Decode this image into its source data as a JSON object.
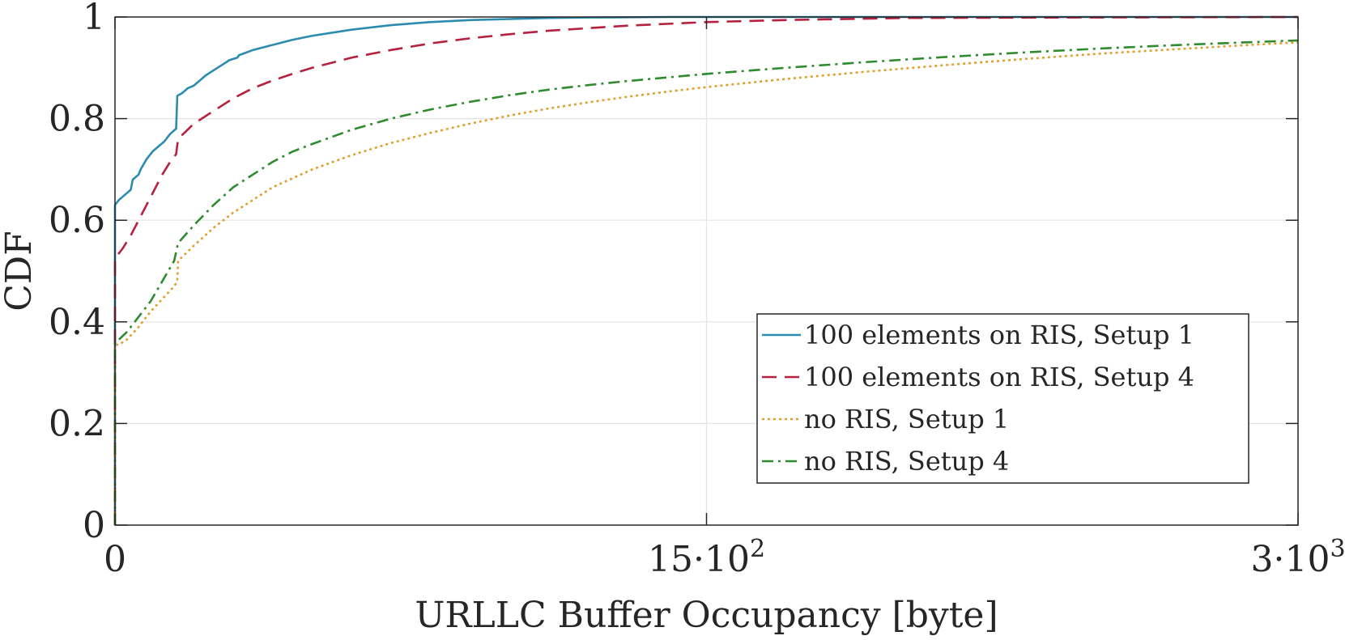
{
  "chart_data": {
    "type": "line",
    "xlabel": "URLLC Buffer Occupancy [byte]",
    "ylabel": "CDF",
    "xlim": [
      0,
      3000
    ],
    "ylim": [
      0,
      1
    ],
    "grid": true,
    "legend_position": "bottom-right",
    "x_ticks": [
      {
        "value": 0,
        "label": "0"
      },
      {
        "value": 1500,
        "label": "15·10",
        "exp": "2"
      },
      {
        "value": 3000,
        "label": "3·10",
        "exp": "3"
      }
    ],
    "y_ticks": [
      {
        "value": 0,
        "label": "0"
      },
      {
        "value": 0.2,
        "label": "0.2"
      },
      {
        "value": 0.4,
        "label": "0.4"
      },
      {
        "value": 0.6,
        "label": "0.6"
      },
      {
        "value": 0.8,
        "label": "0.8"
      },
      {
        "value": 1,
        "label": "1"
      }
    ],
    "series": [
      {
        "name": "100 elements on RIS, Setup 1",
        "color": "#2b8cb0",
        "dash": "solid",
        "points": [
          [
            0,
            0
          ],
          [
            0,
            0.35
          ],
          [
            0,
            0.5
          ],
          [
            0,
            0.63
          ],
          [
            10,
            0.64
          ],
          [
            25,
            0.65
          ],
          [
            40,
            0.66
          ],
          [
            45,
            0.68
          ],
          [
            60,
            0.69
          ],
          [
            65,
            0.7
          ],
          [
            80,
            0.72
          ],
          [
            95,
            0.735
          ],
          [
            110,
            0.745
          ],
          [
            125,
            0.755
          ],
          [
            140,
            0.77
          ],
          [
            155,
            0.78
          ],
          [
            158,
            0.845
          ],
          [
            170,
            0.85
          ],
          [
            185,
            0.86
          ],
          [
            200,
            0.865
          ],
          [
            215,
            0.875
          ],
          [
            230,
            0.885
          ],
          [
            250,
            0.895
          ],
          [
            270,
            0.905
          ],
          [
            290,
            0.915
          ],
          [
            310,
            0.92
          ],
          [
            315,
            0.925
          ],
          [
            350,
            0.935
          ],
          [
            400,
            0.945
          ],
          [
            450,
            0.955
          ],
          [
            500,
            0.963
          ],
          [
            600,
            0.975
          ],
          [
            700,
            0.984
          ],
          [
            800,
            0.99
          ],
          [
            900,
            0.994
          ],
          [
            1000,
            0.996
          ],
          [
            1100,
            0.998
          ],
          [
            1200,
            0.999
          ],
          [
            1400,
            1
          ],
          [
            3000,
            1
          ]
        ]
      },
      {
        "name": "100 elements on RIS, Setup 4",
        "color": "#b5213e",
        "dash": "dashed",
        "points": [
          [
            0,
            0
          ],
          [
            0,
            0.52
          ],
          [
            5,
            0.53
          ],
          [
            20,
            0.545
          ],
          [
            40,
            0.57
          ],
          [
            60,
            0.6
          ],
          [
            80,
            0.63
          ],
          [
            100,
            0.66
          ],
          [
            120,
            0.69
          ],
          [
            140,
            0.715
          ],
          [
            155,
            0.73
          ],
          [
            160,
            0.76
          ],
          [
            180,
            0.775
          ],
          [
            200,
            0.79
          ],
          [
            230,
            0.805
          ],
          [
            260,
            0.82
          ],
          [
            300,
            0.84
          ],
          [
            350,
            0.86
          ],
          [
            400,
            0.875
          ],
          [
            450,
            0.888
          ],
          [
            500,
            0.9
          ],
          [
            600,
            0.92
          ],
          [
            700,
            0.935
          ],
          [
            800,
            0.948
          ],
          [
            900,
            0.958
          ],
          [
            1000,
            0.966
          ],
          [
            1100,
            0.973
          ],
          [
            1200,
            0.978
          ],
          [
            1300,
            0.983
          ],
          [
            1500,
            0.99
          ],
          [
            1700,
            0.994
          ],
          [
            2000,
            0.998
          ],
          [
            2400,
            0.999
          ],
          [
            3000,
            1
          ]
        ]
      },
      {
        "name": "no RIS, Setup 1",
        "color": "#e0a030",
        "dash": "dotted",
        "points": [
          [
            0,
            0
          ],
          [
            0,
            0.355
          ],
          [
            10,
            0.355
          ],
          [
            30,
            0.365
          ],
          [
            60,
            0.39
          ],
          [
            90,
            0.42
          ],
          [
            120,
            0.445
          ],
          [
            150,
            0.47
          ],
          [
            158,
            0.48
          ],
          [
            160,
            0.52
          ],
          [
            200,
            0.55
          ],
          [
            250,
            0.585
          ],
          [
            300,
            0.615
          ],
          [
            350,
            0.64
          ],
          [
            400,
            0.665
          ],
          [
            500,
            0.7
          ],
          [
            600,
            0.728
          ],
          [
            700,
            0.752
          ],
          [
            800,
            0.772
          ],
          [
            900,
            0.79
          ],
          [
            1000,
            0.806
          ],
          [
            1100,
            0.82
          ],
          [
            1200,
            0.832
          ],
          [
            1300,
            0.843
          ],
          [
            1400,
            0.853
          ],
          [
            1500,
            0.862
          ],
          [
            1700,
            0.878
          ],
          [
            1900,
            0.892
          ],
          [
            2100,
            0.905
          ],
          [
            2300,
            0.917
          ],
          [
            2500,
            0.928
          ],
          [
            2700,
            0.937
          ],
          [
            2900,
            0.946
          ],
          [
            3000,
            0.95
          ]
        ]
      },
      {
        "name": "no RIS, Setup 4",
        "color": "#2e8b2e",
        "dash": "dashdot",
        "points": [
          [
            0,
            0
          ],
          [
            0,
            0.36
          ],
          [
            10,
            0.365
          ],
          [
            30,
            0.38
          ],
          [
            60,
            0.41
          ],
          [
            90,
            0.44
          ],
          [
            120,
            0.48
          ],
          [
            150,
            0.52
          ],
          [
            160,
            0.555
          ],
          [
            200,
            0.59
          ],
          [
            250,
            0.63
          ],
          [
            300,
            0.665
          ],
          [
            350,
            0.69
          ],
          [
            400,
            0.715
          ],
          [
            450,
            0.735
          ],
          [
            500,
            0.75
          ],
          [
            600,
            0.778
          ],
          [
            700,
            0.8
          ],
          [
            800,
            0.818
          ],
          [
            900,
            0.833
          ],
          [
            1000,
            0.846
          ],
          [
            1100,
            0.857
          ],
          [
            1200,
            0.866
          ],
          [
            1300,
            0.874
          ],
          [
            1400,
            0.881
          ],
          [
            1500,
            0.888
          ],
          [
            1700,
            0.9
          ],
          [
            1900,
            0.911
          ],
          [
            2100,
            0.921
          ],
          [
            2300,
            0.93
          ],
          [
            2500,
            0.938
          ],
          [
            2700,
            0.945
          ],
          [
            2900,
            0.951
          ],
          [
            3000,
            0.954
          ]
        ]
      }
    ]
  }
}
